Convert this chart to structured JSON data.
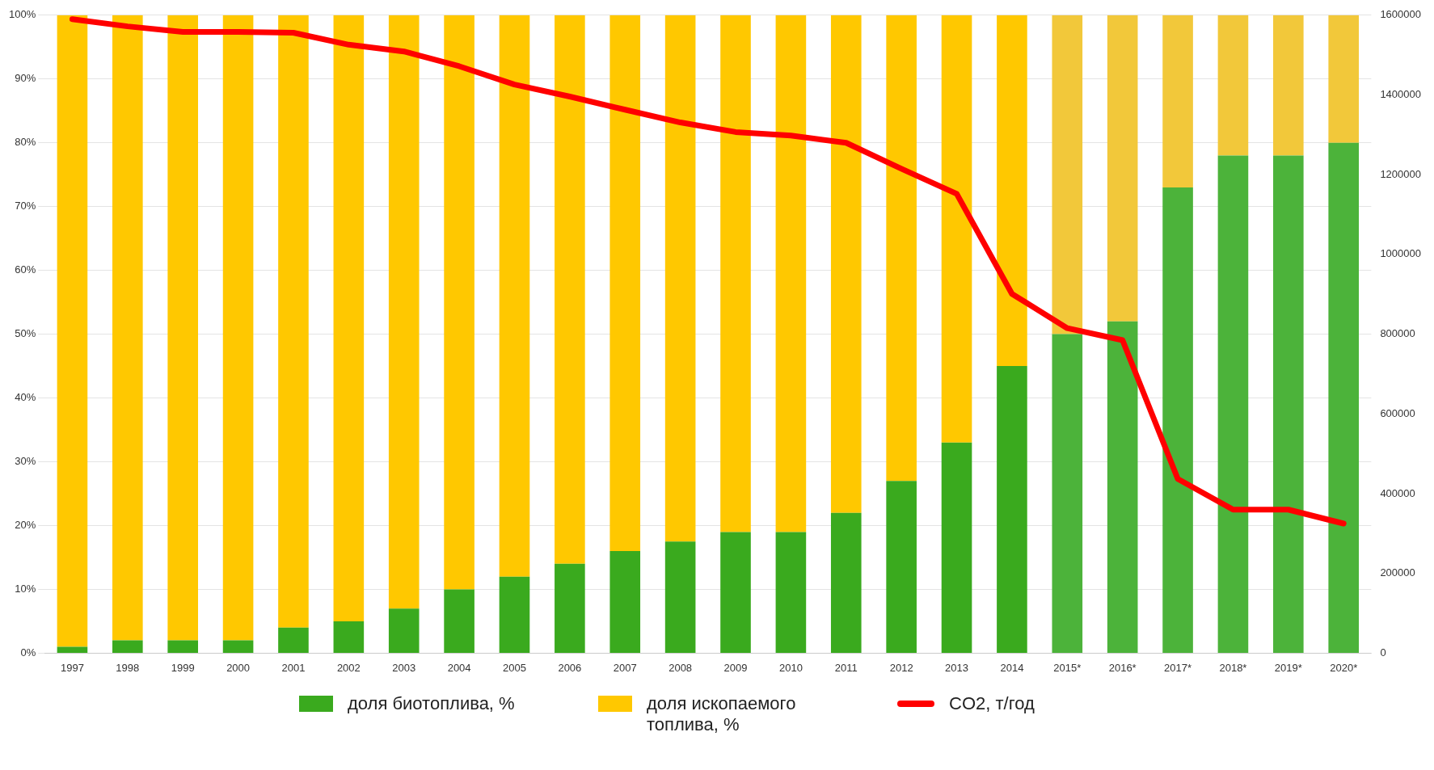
{
  "chart_data": {
    "type": "bar",
    "stacked": true,
    "categories": [
      "1997",
      "1998",
      "1999",
      "2000",
      "2001",
      "2002",
      "2003",
      "2004",
      "2005",
      "2006",
      "2007",
      "2008",
      "2009",
      "2010",
      "2011",
      "2012",
      "2013",
      "2014",
      "2015*",
      "2016*",
      "2017*",
      "2018*",
      "2019*",
      "2020*"
    ],
    "series": [
      {
        "name": "доля биотоплива, %",
        "color": "#3aaa1e",
        "colors": [
          "#3aaa1e",
          "#3aaa1e",
          "#3aaa1e",
          "#3aaa1e",
          "#3aaa1e",
          "#3aaa1e",
          "#3aaa1e",
          "#3aaa1e",
          "#3aaa1e",
          "#3aaa1e",
          "#3aaa1e",
          "#3aaa1e",
          "#3aaa1e",
          "#3aaa1e",
          "#3aaa1e",
          "#3aaa1e",
          "#3aaa1e",
          "#3aaa1e",
          "#4cb33a",
          "#4cb33a",
          "#4cb33a",
          "#4cb33a",
          "#4cb33a",
          "#4cb33a"
        ],
        "values": [
          1,
          2,
          2,
          2,
          4,
          5,
          7,
          10,
          12,
          14,
          16,
          17.5,
          19,
          19,
          22,
          27,
          33,
          45,
          50,
          52,
          73,
          78,
          78,
          80
        ]
      },
      {
        "name": "доля ископаемого топлива, %",
        "color": "#ffc800",
        "colors": [
          "#ffc800",
          "#ffc800",
          "#ffc800",
          "#ffc800",
          "#ffc800",
          "#ffc800",
          "#ffc800",
          "#ffc800",
          "#ffc800",
          "#ffc800",
          "#ffc800",
          "#ffc800",
          "#ffc800",
          "#ffc800",
          "#ffc800",
          "#ffc800",
          "#ffc800",
          "#ffc800",
          "#f2c83a",
          "#f2c83a",
          "#f2c83a",
          "#f2c83a",
          "#f2c83a",
          "#f2c83a"
        ],
        "values": [
          99,
          98,
          98,
          98,
          96,
          95,
          93,
          90,
          88,
          86,
          84,
          82.5,
          81,
          81,
          78,
          73,
          67,
          55,
          50,
          48,
          27,
          22,
          22,
          20
        ]
      },
      {
        "name": "CO2, т/год",
        "type": "line",
        "axis": "y2",
        "color": "#ff0000",
        "values": [
          1590000,
          1572000,
          1558000,
          1558000,
          1556000,
          1526000,
          1509000,
          1472000,
          1426000,
          1396000,
          1363000,
          1331000,
          1307000,
          1298000,
          1280000,
          1215000,
          1152000,
          901000,
          815000,
          785000,
          437000,
          360000,
          360000,
          325000
        ]
      }
    ],
    "ylim": [
      0,
      100
    ],
    "yticks": [
      {
        "value": 0,
        "label": "0%"
      },
      {
        "value": 10,
        "label": "10%"
      },
      {
        "value": 20,
        "label": "20%"
      },
      {
        "value": 30,
        "label": "30%"
      },
      {
        "value": 40,
        "label": "40%"
      },
      {
        "value": 50,
        "label": "50%"
      },
      {
        "value": 60,
        "label": "60%"
      },
      {
        "value": 70,
        "label": "70%"
      },
      {
        "value": 80,
        "label": "80%"
      },
      {
        "value": 90,
        "label": "90%"
      },
      {
        "value": 100,
        "label": "100%"
      }
    ],
    "y2lim": [
      0,
      1600000
    ],
    "y2ticks": [
      0,
      200000,
      400000,
      600000,
      800000,
      1000000,
      1200000,
      1400000,
      1600000
    ],
    "grid": "y",
    "legend": "bottom",
    "marker": "none",
    "line_style": "solid"
  }
}
